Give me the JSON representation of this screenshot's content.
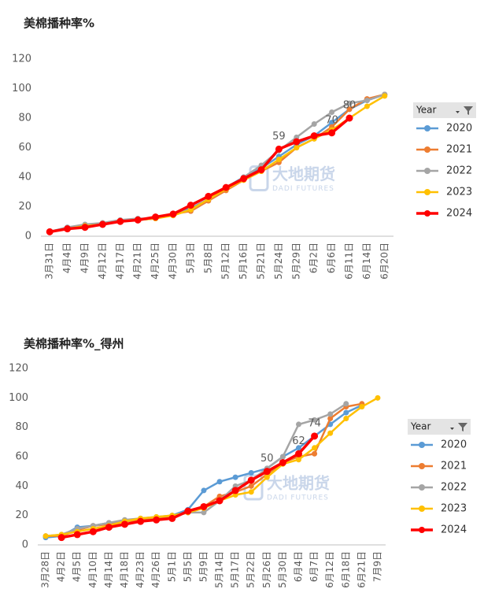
{
  "chart_data": [
    {
      "type": "line",
      "title": "美棉播种率%",
      "categories": [
        "3月31日",
        "4月4日",
        "4月9日",
        "4月12日",
        "4月17日",
        "4月21日",
        "4月25日",
        "4月30日",
        "5月3日",
        "5月8日",
        "5月12日",
        "5月16日",
        "5月21日",
        "5月24日",
        "5月29日",
        "6月2日",
        "6月6日",
        "6月11日",
        "6月14日",
        "6月20日"
      ],
      "series": [
        {
          "name": "2020",
          "color": "#5b9bd5",
          "values": [
            3,
            6,
            7,
            8,
            10,
            11,
            12,
            15,
            19,
            25,
            33,
            40,
            46,
            54,
            62,
            68,
            77,
            86,
            92,
            96
          ]
        },
        {
          "name": "2021",
          "color": "#ed7d31",
          "values": [
            3,
            5,
            7,
            9,
            10,
            11,
            12,
            15,
            17,
            24,
            31,
            38,
            44,
            50,
            60,
            66,
            74,
            86,
            93,
            96
          ]
        },
        {
          "name": "2022",
          "color": "#a5a5a5",
          "values": [
            3,
            6,
            8,
            9,
            11,
            12,
            12,
            15,
            18,
            25,
            32,
            40,
            48,
            58,
            67,
            76,
            84,
            90,
            92,
            96
          ]
        },
        {
          "name": "2023",
          "color": "#ffc000",
          "values": [
            3,
            5,
            7,
            8,
            10,
            11,
            12,
            14,
            18,
            25,
            32,
            38,
            44,
            52,
            60,
            66,
            72,
            80,
            88,
            95
          ]
        },
        {
          "name": "2024",
          "color": "#ff0000",
          "values": [
            3,
            5,
            6,
            8,
            10,
            11,
            13,
            15,
            21,
            27,
            33,
            39,
            45,
            59,
            64,
            68,
            70,
            80,
            null,
            null
          ],
          "value_labels": [
            null,
            null,
            null,
            null,
            null,
            null,
            null,
            null,
            null,
            null,
            null,
            null,
            null,
            "59",
            null,
            null,
            "70",
            "80",
            null,
            null
          ]
        }
      ],
      "ylim": [
        0,
        120
      ],
      "yticks": [
        0,
        20,
        40,
        60,
        80,
        100,
        120
      ],
      "grid": false,
      "legend_title": "Year",
      "legend_position": "right",
      "watermark": [
        "大地期货",
        "DADI FUTURES"
      ]
    },
    {
      "type": "line",
      "title": "美棉播种率%_得州",
      "categories": [
        "3月28日",
        "4月2日",
        "4月5日",
        "4月10日",
        "4月14日",
        "4月18日",
        "4月23日",
        "4月26日",
        "5月1日",
        "5月5日",
        "5月9日",
        "5月14日",
        "5月17日",
        "5月22日",
        "5月26日",
        "5月30日",
        "6月4日",
        "6月7日",
        "6月12日",
        "6月18日",
        "6月21日",
        "7月9日"
      ],
      "series": [
        {
          "name": "2020",
          "color": "#5b9bd5",
          "values": [
            5,
            6,
            12,
            13,
            15,
            16,
            17,
            18,
            20,
            24,
            37,
            43,
            46,
            49,
            52,
            60,
            66,
            74,
            82,
            90,
            95,
            null
          ]
        },
        {
          "name": "2021",
          "color": "#ed7d31",
          "values": [
            6,
            6,
            10,
            13,
            14,
            16,
            17,
            18,
            19,
            22,
            26,
            33,
            36,
            40,
            48,
            56,
            60,
            62,
            86,
            94,
            96,
            null
          ]
        },
        {
          "name": "2022",
          "color": "#a5a5a5",
          "values": [
            6,
            7,
            11,
            13,
            15,
            17,
            18,
            19,
            20,
            22,
            22,
            30,
            40,
            44,
            52,
            60,
            82,
            85,
            89,
            96,
            null,
            null
          ]
        },
        {
          "name": "2023",
          "color": "#ffc000",
          "values": [
            6,
            7,
            9,
            11,
            13,
            16,
            18,
            19,
            20,
            22,
            25,
            30,
            34,
            36,
            46,
            55,
            58,
            66,
            76,
            86,
            94,
            100
          ]
        },
        {
          "name": "2024",
          "color": "#ff0000",
          "values": [
            null,
            5,
            7,
            9,
            12,
            14,
            16,
            17,
            18,
            23,
            26,
            30,
            37,
            44,
            50,
            56,
            62,
            74,
            null,
            null,
            null,
            null
          ],
          "value_labels": [
            null,
            null,
            null,
            null,
            null,
            null,
            null,
            null,
            null,
            null,
            null,
            null,
            null,
            null,
            "50",
            null,
            "62",
            "74",
            null,
            null,
            null,
            null
          ]
        }
      ],
      "ylim": [
        0,
        120
      ],
      "yticks": [
        0,
        20,
        40,
        60,
        80,
        100,
        120
      ],
      "grid": false,
      "legend_title": "Year",
      "legend_position": "right",
      "watermark": [
        "大地期货",
        "DADI FUTURES"
      ]
    }
  ]
}
